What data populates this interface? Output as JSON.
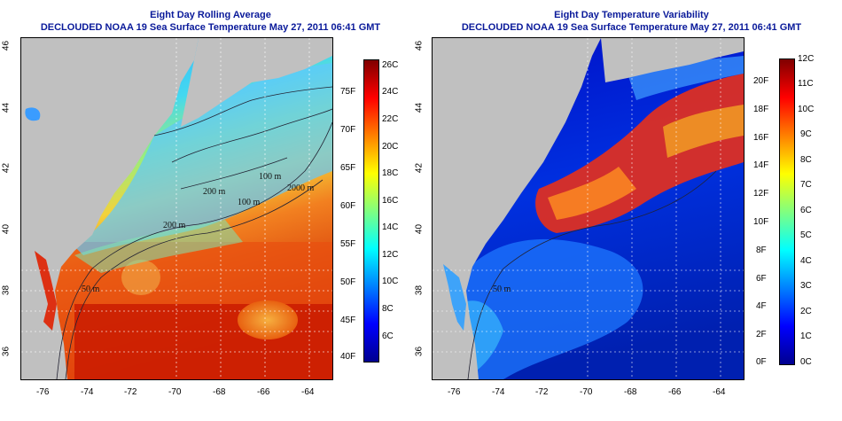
{
  "panels": [
    {
      "title": "Eight Day Rolling Average",
      "subtitle": "DECLOUDED NOAA 19 Sea Surface Temperature May 27, 2011 06:41 GMT",
      "x_ticks": [
        "-76",
        "-74",
        "-72",
        "-70",
        "-68",
        "-66",
        "-64"
      ],
      "y_ticks": [
        "46",
        "44",
        "42",
        "40",
        "38",
        "36"
      ],
      "contour_labels": [
        "100 m",
        "100 m",
        "2000 m",
        "200 m",
        "200 m",
        "50 m"
      ],
      "colorbar": {
        "left_labels": [
          "75F",
          "70F",
          "65F",
          "60F",
          "55F",
          "50F",
          "45F",
          "40F"
        ],
        "right_labels": [
          "26C",
          "24C",
          "22C",
          "20C",
          "18C",
          "16C",
          "14C",
          "12C",
          "10C",
          "8C",
          "6C"
        ]
      }
    },
    {
      "title": "Eight Day Temperature Variability",
      "subtitle": "DECLOUDED NOAA 19 Sea Surface Temperature May 27, 2011 06:41 GMT",
      "x_ticks": [
        "-76",
        "-74",
        "-72",
        "-70",
        "-68",
        "-66",
        "-64"
      ],
      "y_ticks": [
        "46",
        "44",
        "42",
        "40",
        "38",
        "36"
      ],
      "contour_labels": [
        "50 m"
      ],
      "colorbar": {
        "left_labels": [
          "20F",
          "18F",
          "16F",
          "14F",
          "12F",
          "10F",
          "8F",
          "6F",
          "4F",
          "2F",
          "0F"
        ],
        "right_labels": [
          "12C",
          "11C",
          "10C",
          "9C",
          "8C",
          "7C",
          "6C",
          "5C",
          "4C",
          "3C",
          "2C",
          "1C",
          "0C"
        ]
      }
    }
  ],
  "colors": {
    "title": "#0a1a9a",
    "land": "#c0c0c0",
    "jet": [
      "#00008f",
      "#0000ff",
      "#0080ff",
      "#00ffff",
      "#80ff80",
      "#ffff00",
      "#ff8000",
      "#ff0000",
      "#800000"
    ]
  }
}
